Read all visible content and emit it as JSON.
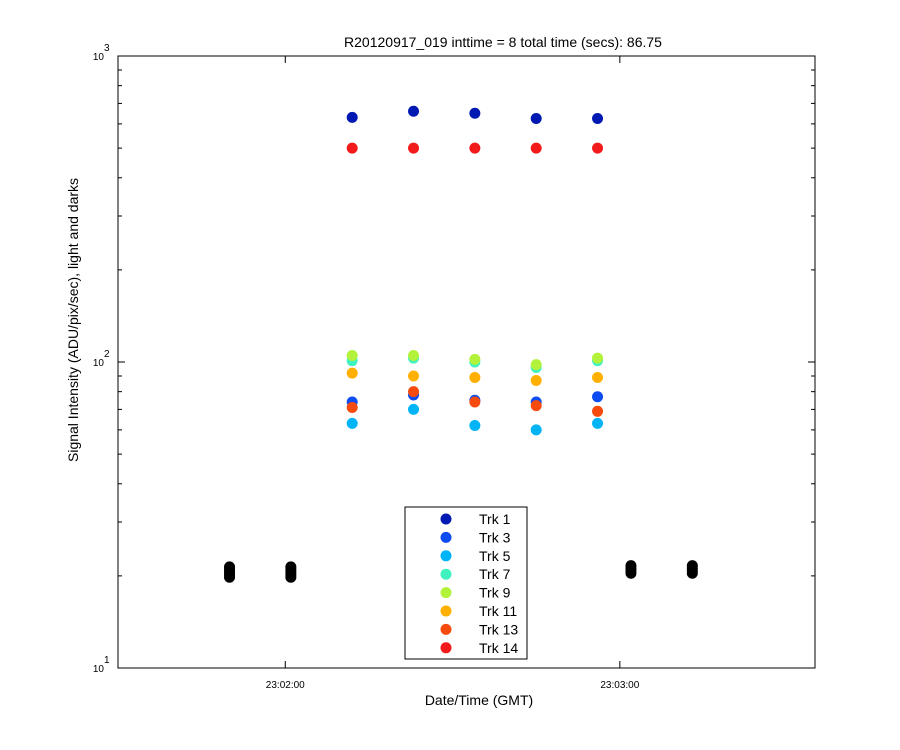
{
  "chart_data": {
    "type": "scatter",
    "title": "R20120917_019 inttime = 8 total time (secs): 86.75",
    "xlabel": "Date/Time (GMT)",
    "ylabel": "Signal Intensity (ADU/pix/sec), light and darks",
    "y_scale": "log",
    "ylim": [
      10,
      1000
    ],
    "xlim": [
      "23:01:30",
      "23:03:35"
    ],
    "x_ticks": [
      "23:02:00",
      "23:03:00"
    ],
    "y_ticks": [
      {
        "base": "10",
        "exp": "1",
        "value": 10
      },
      {
        "base": "10",
        "exp": "2",
        "value": 100
      },
      {
        "base": "10",
        "exp": "3",
        "value": 1000
      }
    ],
    "grid": false,
    "legend_position": "bottom-center",
    "x": [
      "23:02:12",
      "23:02:23",
      "23:02:34",
      "23:02:45",
      "23:02:56"
    ],
    "series": [
      {
        "name": "Trk 1",
        "color": "#0019b3",
        "values": [
          630,
          660,
          650,
          625,
          625
        ]
      },
      {
        "name": "Trk 3",
        "color": "#0d4cf0",
        "values": [
          74,
          78,
          75,
          74,
          77
        ]
      },
      {
        "name": "Trk 5",
        "color": "#00b4f5",
        "values": [
          63,
          70,
          62,
          60,
          63
        ]
      },
      {
        "name": "Trk 7",
        "color": "#3ff2bf",
        "values": [
          101,
          103,
          100,
          96,
          101
        ]
      },
      {
        "name": "Trk 9",
        "color": "#b2f23a",
        "values": [
          105,
          105,
          102,
          98,
          103
        ]
      },
      {
        "name": "Trk 11",
        "color": "#ffb000",
        "values": [
          92,
          90,
          89,
          87,
          89
        ]
      },
      {
        "name": "Trk 13",
        "color": "#f74a0d",
        "values": [
          71,
          80,
          74,
          72,
          69
        ]
      },
      {
        "name": "Trk 14",
        "color": "#f21a1a",
        "values": [
          500,
          500,
          500,
          500,
          500
        ]
      }
    ],
    "dark_points": {
      "color": "#000000",
      "x": [
        "23:01:50",
        "23:02:01",
        "23:03:02",
        "23:03:13"
      ],
      "values": [
        [
          19.8,
          20.2,
          20.6,
          21.0,
          21.4
        ],
        [
          19.8,
          20.2,
          20.6,
          21.0,
          21.4
        ],
        [
          20.4,
          20.8,
          21.2,
          21.6
        ],
        [
          20.4,
          20.8,
          21.2,
          21.6
        ]
      ]
    }
  }
}
